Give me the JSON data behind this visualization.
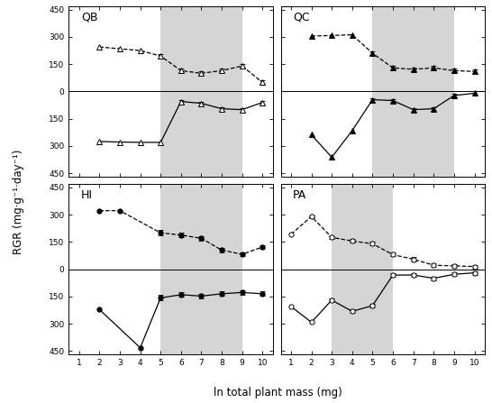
{
  "panels": {
    "QB": {
      "shade1": [
        5,
        9
      ],
      "shade2": null,
      "dashed": {
        "x": [
          2,
          3,
          4,
          5,
          6,
          7,
          8,
          9,
          10
        ],
        "y": [
          245,
          235,
          225,
          195,
          115,
          100,
          115,
          140,
          50
        ],
        "err": [
          0,
          0,
          0,
          10,
          10,
          10,
          10,
          10,
          10
        ],
        "marker": "^",
        "mfc": "white"
      },
      "solid": {
        "x": [
          2,
          3,
          4,
          5,
          6,
          7,
          8,
          9,
          10
        ],
        "y": [
          -275,
          -278,
          -280,
          -280,
          -55,
          -65,
          -95,
          -100,
          -60
        ],
        "err": [
          0,
          0,
          0,
          0,
          10,
          10,
          10,
          10,
          10
        ],
        "marker": "^",
        "mfc": "white"
      }
    },
    "QC": {
      "shade1": [
        5,
        9
      ],
      "shade2": null,
      "dashed": {
        "x": [
          2,
          3,
          4,
          5,
          6,
          7,
          8,
          9,
          10
        ],
        "y": [
          305,
          308,
          312,
          210,
          130,
          122,
          130,
          115,
          110
        ],
        "err": [
          0,
          0,
          0,
          10,
          10,
          10,
          10,
          10,
          10
        ],
        "marker": "^",
        "mfc": "black"
      },
      "solid": {
        "x": [
          2,
          3,
          4,
          5,
          6,
          7,
          8,
          9,
          10
        ],
        "y": [
          -238,
          -362,
          -215,
          -45,
          -50,
          -100,
          -95,
          -22,
          -10
        ],
        "err": [
          0,
          0,
          0,
          10,
          10,
          10,
          10,
          10,
          10
        ],
        "marker": "^",
        "mfc": "black"
      }
    },
    "HI": {
      "shade1": [
        5,
        9
      ],
      "shade2": null,
      "dashed": {
        "x": [
          2,
          3,
          5,
          6,
          7,
          8,
          9,
          10
        ],
        "y": [
          322,
          322,
          200,
          188,
          170,
          105,
          82,
          122
        ],
        "err": [
          0,
          0,
          15,
          12,
          12,
          12,
          12,
          12
        ],
        "marker": "o",
        "mfc": "black"
      },
      "solid": {
        "x": [
          2,
          4,
          5,
          6,
          7,
          8,
          9,
          10
        ],
        "y": [
          -222,
          -432,
          -158,
          -140,
          -148,
          -135,
          -128,
          -135
        ],
        "err": [
          0,
          0,
          15,
          12,
          12,
          12,
          12,
          12
        ],
        "marker": "o",
        "mfc": "black"
      }
    },
    "PA": {
      "shade1": [
        3,
        6
      ],
      "shade2": null,
      "dashed": {
        "x": [
          1,
          2,
          3,
          4,
          5,
          6,
          7,
          8,
          9,
          10
        ],
        "y": [
          192,
          290,
          175,
          155,
          140,
          80,
          55,
          22,
          18,
          15
        ],
        "err": [
          0,
          5,
          8,
          10,
          10,
          10,
          10,
          10,
          10,
          10
        ],
        "marker": "o",
        "mfc": "white"
      },
      "solid": {
        "x": [
          1,
          2,
          3,
          4,
          5,
          6,
          7,
          8,
          9,
          10
        ],
        "y": [
          -205,
          -292,
          -170,
          -232,
          -200,
          -32,
          -32,
          -50,
          -28,
          -20
        ],
        "err": [
          0,
          0,
          8,
          10,
          10,
          10,
          10,
          10,
          10,
          10
        ],
        "marker": "o",
        "mfc": "white"
      }
    }
  },
  "ylim": [
    -470,
    470
  ],
  "xlim": [
    0.5,
    10.5
  ],
  "xticks": [
    1,
    2,
    3,
    4,
    5,
    6,
    7,
    8,
    9,
    10
  ],
  "yticks": [
    -450,
    -300,
    -150,
    0,
    150,
    300,
    450
  ],
  "yticklabels_left": [
    "450",
    "300",
    "150",
    "0",
    "150",
    "300",
    "450"
  ],
  "shade_color": "#c8c8c8",
  "shade_alpha": 0.75,
  "ylabel": "RGR (mg·g⁻¹·day⁻¹)",
  "xlabel": "ln total plant mass (mg)"
}
